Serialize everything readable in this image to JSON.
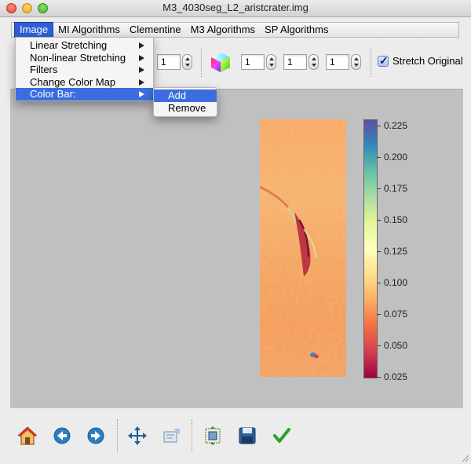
{
  "window": {
    "title": "M3_4030seg_L2_aristcrater.img"
  },
  "menubar": {
    "items": [
      {
        "label": "Image",
        "active": true
      },
      {
        "label": "MI Algorithms"
      },
      {
        "label": "Clementine"
      },
      {
        "label": "M3 Algorithms"
      },
      {
        "label": "SP Algorithms"
      }
    ]
  },
  "image_menu": {
    "items": [
      {
        "label": "Linear Stretching"
      },
      {
        "label": "Non-linear Stretching"
      },
      {
        "label": "Filters"
      },
      {
        "label": "Change Color Map"
      },
      {
        "label": "Color Bar:"
      }
    ]
  },
  "colorbar_menu": {
    "items": [
      {
        "label": "Add"
      },
      {
        "label": "Remove"
      }
    ]
  },
  "toolbar": {
    "band_value": "1",
    "rgb_values": [
      "1",
      "1",
      "1"
    ],
    "stretch_original_label": "Stretch Original",
    "stretch_original_checked": true
  },
  "colorbar": {
    "labels": [
      "0.225",
      "0.200",
      "0.175",
      "0.150",
      "0.125",
      "0.100",
      "0.075",
      "0.050",
      "0.025"
    ],
    "colors": [
      "#9e0142",
      "#d53e4f",
      "#f46d43",
      "#fdae61",
      "#fee08b",
      "#ffffbf",
      "#e6f598",
      "#abdda4",
      "#66c2a5",
      "#3288bd",
      "#5e4fa2"
    ]
  },
  "bottom_toolbar": {
    "icons": [
      "home-icon",
      "back-arrow-icon",
      "forward-arrow-icon",
      "pan-icon",
      "configure-subplots-icon",
      "zoom-region-icon",
      "save-icon",
      "apply-checkmark-icon"
    ]
  }
}
